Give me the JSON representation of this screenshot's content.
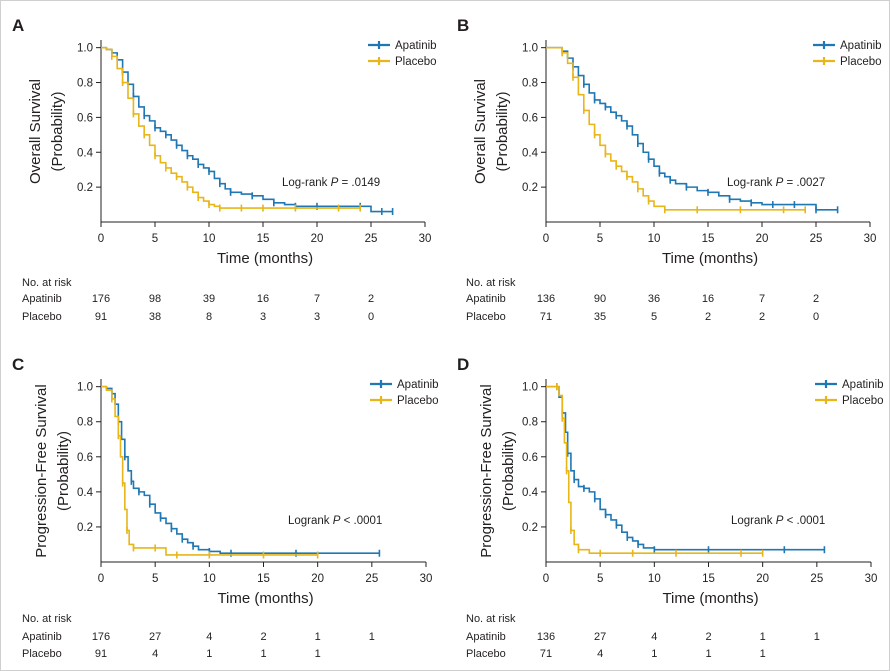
{
  "colors": {
    "apatinib": "#1f78b4",
    "placebo": "#e8b619",
    "axis": "#231f20"
  },
  "chart_data": [
    {
      "panel": "A",
      "type": "line",
      "ylabel": [
        "Overall Survival",
        "(Probability)"
      ],
      "xlabel": "Time (months)",
      "xlim": [
        0,
        30
      ],
      "ylim": [
        0,
        1.0
      ],
      "xticks": [
        "0",
        "5",
        "10",
        "15",
        "20",
        "25",
        "30"
      ],
      "yticks": [
        "1.0",
        "0.8",
        "0.6",
        "0.4",
        "0.2"
      ],
      "legend": [
        "Apatinib",
        "Placebo"
      ],
      "pvalue": {
        "label": "Log-rank ",
        "p": "P",
        "value": " = .0149"
      },
      "series": [
        {
          "name": "Apatinib",
          "x": [
            0,
            0.5,
            1,
            1.5,
            2,
            2.5,
            3,
            3.5,
            4,
            4.5,
            5,
            5.5,
            6,
            6.5,
            7,
            7.5,
            8,
            8.5,
            9,
            9.5,
            10,
            10.5,
            11,
            11.5,
            12,
            13,
            14,
            15,
            16,
            17,
            18,
            19,
            20,
            22,
            24,
            25,
            26,
            27
          ],
          "y": [
            1.0,
            0.99,
            0.97,
            0.93,
            0.86,
            0.79,
            0.72,
            0.66,
            0.61,
            0.58,
            0.54,
            0.52,
            0.5,
            0.47,
            0.44,
            0.41,
            0.38,
            0.36,
            0.33,
            0.31,
            0.29,
            0.25,
            0.22,
            0.19,
            0.17,
            0.16,
            0.15,
            0.13,
            0.11,
            0.1,
            0.09,
            0.09,
            0.09,
            0.09,
            0.09,
            0.06,
            0.06,
            0.06
          ]
        },
        {
          "name": "Placebo",
          "x": [
            0,
            0.5,
            1,
            1.5,
            2,
            2.5,
            3,
            3.5,
            4,
            4.5,
            5,
            5.5,
            6,
            6.5,
            7,
            7.5,
            8,
            8.5,
            9,
            9.5,
            10,
            10.5,
            11,
            12,
            13,
            14,
            15,
            16,
            18,
            20,
            22,
            24
          ],
          "y": [
            1.0,
            0.99,
            0.95,
            0.88,
            0.8,
            0.71,
            0.62,
            0.55,
            0.5,
            0.44,
            0.38,
            0.34,
            0.31,
            0.28,
            0.26,
            0.23,
            0.2,
            0.17,
            0.14,
            0.12,
            0.1,
            0.09,
            0.08,
            0.08,
            0.08,
            0.08,
            0.08,
            0.08,
            0.08,
            0.08,
            0.08,
            0.08
          ]
        }
      ],
      "risk_table": {
        "title": "No. at risk",
        "rows": [
          {
            "label": "Apatinib",
            "values": [
              "176",
              "98",
              "39",
              "16",
              "7",
              "2"
            ]
          },
          {
            "label": "Placebo",
            "values": [
              "91",
              "38",
              "8",
              "3",
              "3",
              "0"
            ]
          }
        ]
      }
    },
    {
      "panel": "B",
      "type": "line",
      "ylabel": [
        "Overall Survival",
        "(Probability)"
      ],
      "xlabel": "Time (months)",
      "xlim": [
        0,
        30
      ],
      "ylim": [
        0,
        1.0
      ],
      "xticks": [
        "0",
        "5",
        "10",
        "15",
        "20",
        "25",
        "30"
      ],
      "yticks": [
        "1.0",
        "0.8",
        "0.6",
        "0.4",
        "0.2"
      ],
      "legend": [
        "Apatinib",
        "Placebo"
      ],
      "pvalue": {
        "label": "Log-rank ",
        "p": "P",
        "value": " = .0027"
      },
      "series": [
        {
          "name": "Apatinib",
          "x": [
            0,
            1,
            1.5,
            2,
            2.5,
            3,
            3.5,
            4,
            4.5,
            5,
            5.5,
            6,
            6.5,
            7,
            7.5,
            8,
            8.5,
            9,
            9.5,
            10,
            10.5,
            11,
            11.5,
            12,
            13,
            14,
            15,
            16,
            17,
            18,
            19,
            20,
            21,
            22,
            23,
            24,
            25,
            26,
            27
          ],
          "y": [
            1.0,
            1.0,
            0.98,
            0.94,
            0.89,
            0.84,
            0.79,
            0.74,
            0.7,
            0.68,
            0.66,
            0.63,
            0.61,
            0.58,
            0.55,
            0.5,
            0.45,
            0.4,
            0.36,
            0.32,
            0.28,
            0.26,
            0.24,
            0.22,
            0.2,
            0.18,
            0.17,
            0.15,
            0.13,
            0.12,
            0.11,
            0.1,
            0.1,
            0.1,
            0.1,
            0.1,
            0.07,
            0.07,
            0.07
          ]
        },
        {
          "name": "Placebo",
          "x": [
            0,
            1,
            1.5,
            2,
            2.5,
            3,
            3.5,
            4,
            4.5,
            5,
            5.5,
            6,
            6.5,
            7,
            7.5,
            8,
            8.5,
            9,
            9.5,
            10,
            11,
            12,
            14,
            16,
            18,
            20,
            22,
            24
          ],
          "y": [
            1.0,
            1.0,
            0.97,
            0.91,
            0.83,
            0.73,
            0.64,
            0.56,
            0.5,
            0.44,
            0.39,
            0.35,
            0.32,
            0.29,
            0.26,
            0.23,
            0.19,
            0.15,
            0.12,
            0.09,
            0.07,
            0.07,
            0.07,
            0.07,
            0.07,
            0.07,
            0.07,
            0.07
          ]
        }
      ],
      "risk_table": {
        "title": "No. at risk",
        "rows": [
          {
            "label": "Apatinib",
            "values": [
              "136",
              "90",
              "36",
              "16",
              "7",
              "2"
            ]
          },
          {
            "label": "Placebo",
            "values": [
              "71",
              "35",
              "5",
              "2",
              "2",
              "0"
            ]
          }
        ]
      }
    },
    {
      "panel": "C",
      "type": "line",
      "ylabel": [
        "Progression-Free Survival",
        "(Probability)"
      ],
      "xlabel": "Time (months)",
      "xlim": [
        0,
        30
      ],
      "ylim": [
        0,
        1.0
      ],
      "xticks": [
        "0",
        "5",
        "10",
        "15",
        "20",
        "25",
        "30"
      ],
      "yticks": [
        "1.0",
        "0.8",
        "0.6",
        "0.4",
        "0.2"
      ],
      "legend": [
        "Apatinib",
        "Placebo"
      ],
      "pvalue": {
        "label": "Logrank ",
        "p": "P",
        "value": " < .0001"
      },
      "series": [
        {
          "name": "Apatinib",
          "x": [
            0,
            0.5,
            1,
            1.3,
            1.6,
            1.9,
            2.2,
            2.5,
            2.8,
            3,
            3.5,
            4,
            4.5,
            5,
            5.5,
            6,
            6.5,
            7,
            7.5,
            8,
            8.5,
            9,
            10,
            11,
            12,
            15,
            18,
            22,
            25.7
          ],
          "y": [
            1.0,
            0.99,
            0.96,
            0.9,
            0.8,
            0.7,
            0.6,
            0.52,
            0.46,
            0.42,
            0.4,
            0.38,
            0.33,
            0.28,
            0.25,
            0.22,
            0.19,
            0.16,
            0.13,
            0.11,
            0.09,
            0.07,
            0.06,
            0.05,
            0.05,
            0.05,
            0.05,
            0.05,
            0.05
          ]
        },
        {
          "name": "Placebo",
          "x": [
            0,
            0.5,
            1,
            1.3,
            1.6,
            1.8,
            2,
            2.2,
            2.4,
            2.6,
            3,
            4,
            5,
            6,
            7,
            8,
            10,
            12,
            15,
            18,
            20
          ],
          "y": [
            1.0,
            0.98,
            0.93,
            0.83,
            0.72,
            0.6,
            0.45,
            0.3,
            0.18,
            0.1,
            0.08,
            0.08,
            0.08,
            0.04,
            0.04,
            0.04,
            0.04,
            0.04,
            0.04,
            0.04,
            0.04
          ]
        }
      ],
      "risk_table": {
        "title": "No. at risk",
        "rows": [
          {
            "label": "Apatinib",
            "values": [
              "176",
              "27",
              "4",
              "2",
              "1",
              "1"
            ]
          },
          {
            "label": "Placebo",
            "values": [
              "91",
              "4",
              "1",
              "1",
              "1",
              ""
            ]
          }
        ]
      }
    },
    {
      "panel": "D",
      "type": "line",
      "ylabel": [
        "Progression-Free Survival",
        "(Probability)"
      ],
      "xlabel": "Time (months)",
      "xlim": [
        0,
        30
      ],
      "ylim": [
        0,
        1.0
      ],
      "xticks": [
        "0",
        "5",
        "10",
        "15",
        "20",
        "25",
        "30"
      ],
      "yticks": [
        "1.0",
        "0.8",
        "0.6",
        "0.4",
        "0.2"
      ],
      "legend": [
        "Apatinib",
        "Placebo"
      ],
      "pvalue": {
        "label": "Logrank ",
        "p": "P",
        "value": " < .0001"
      },
      "series": [
        {
          "name": "Apatinib",
          "x": [
            0,
            0.5,
            1,
            1.2,
            1.5,
            1.8,
            2,
            2.3,
            2.6,
            3,
            3.5,
            4,
            4.5,
            5,
            5.5,
            6,
            6.5,
            7,
            7.5,
            8,
            8.5,
            9,
            10,
            12,
            15,
            18,
            22,
            25.7
          ],
          "y": [
            1.0,
            1.0,
            1.0,
            0.94,
            0.85,
            0.74,
            0.62,
            0.52,
            0.47,
            0.43,
            0.42,
            0.4,
            0.36,
            0.3,
            0.27,
            0.24,
            0.21,
            0.17,
            0.14,
            0.12,
            0.1,
            0.08,
            0.07,
            0.07,
            0.07,
            0.07,
            0.07,
            0.07
          ]
        },
        {
          "name": "Placebo",
          "x": [
            0,
            0.5,
            1,
            1.2,
            1.5,
            1.7,
            1.9,
            2.1,
            2.3,
            2.6,
            3,
            4,
            5,
            6,
            8,
            10,
            12,
            15,
            18,
            20
          ],
          "y": [
            1.0,
            1.0,
            1.0,
            0.95,
            0.82,
            0.68,
            0.52,
            0.34,
            0.18,
            0.1,
            0.07,
            0.05,
            0.05,
            0.05,
            0.05,
            0.05,
            0.05,
            0.05,
            0.05,
            0.05
          ]
        }
      ],
      "risk_table": {
        "title": "No. at risk",
        "rows": [
          {
            "label": "Apatinib",
            "values": [
              "136",
              "27",
              "4",
              "2",
              "1",
              "1"
            ]
          },
          {
            "label": "Placebo",
            "values": [
              "71",
              "4",
              "1",
              "1",
              "1",
              ""
            ]
          }
        ]
      }
    }
  ]
}
